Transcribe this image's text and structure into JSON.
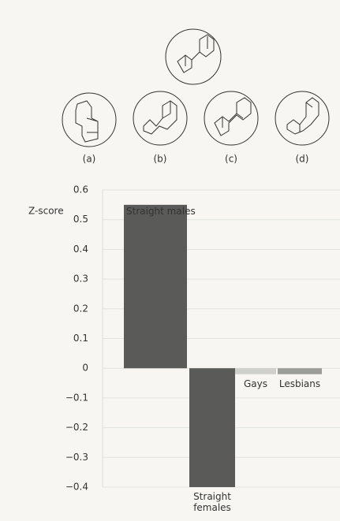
{
  "figure": {
    "labels": [
      "(a)",
      "(b)",
      "(c)",
      "(d)"
    ]
  },
  "chart_data": {
    "type": "bar",
    "y_label": "Z-score",
    "categories": [
      "Straight males",
      "Straight females",
      "Gays",
      "Lesbians"
    ],
    "values": [
      0.55,
      -0.4,
      -0.02,
      -0.02
    ],
    "colors": [
      "#5a5a58",
      "#5a5a58",
      "#cfcfcc",
      "#9c9c99"
    ],
    "ylim": [
      -0.4,
      0.6
    ],
    "yticks": [
      {
        "value": -0.4,
        "label": "−0.4"
      },
      {
        "value": -0.3,
        "label": "−0.3"
      },
      {
        "value": -0.2,
        "label": "−0.2"
      },
      {
        "value": -0.1,
        "label": "−0.1"
      },
      0,
      0.1,
      0.2,
      0.3,
      0.4,
      0.5,
      0.6
    ],
    "grid": true
  }
}
